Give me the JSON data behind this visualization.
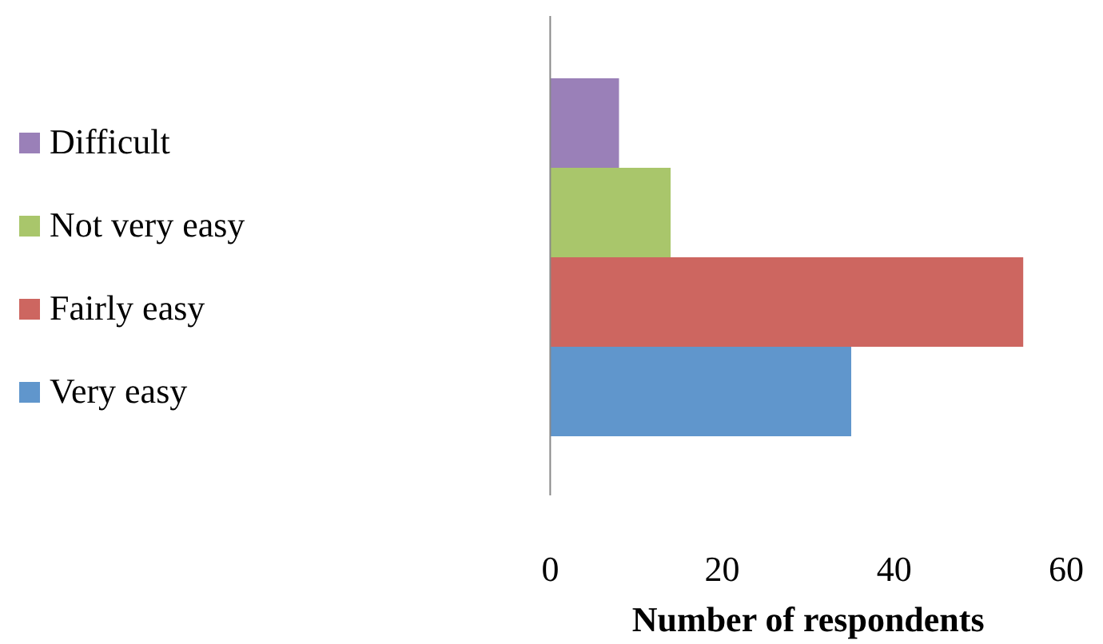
{
  "chart_data": {
    "type": "bar",
    "orientation": "horizontal",
    "categories": [
      null
    ],
    "series": [
      {
        "name": "Difficult",
        "color": "#9a80b8",
        "values": [
          8
        ]
      },
      {
        "name": "Not very easy",
        "color": "#a9c66b",
        "values": [
          14
        ]
      },
      {
        "name": "Fairly easy",
        "color": "#cd6660",
        "values": [
          55
        ]
      },
      {
        "name": "Very easy",
        "color": "#6096cc",
        "values": [
          35
        ]
      }
    ],
    "xlim": [
      0,
      60
    ],
    "xticks": [
      0,
      20,
      40,
      60
    ],
    "xlabel": "Number of respondents",
    "legend": "left",
    "grid": false
  }
}
